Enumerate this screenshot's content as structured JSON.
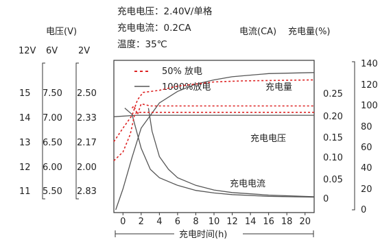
{
  "conditions": [
    "充电电压：2.40V/单格",
    "充电电流：0.2CA",
    "温度：35℃"
  ],
  "left_axis": {
    "title": "电压(V)",
    "scale_names": [
      "12V",
      "6V",
      "2V"
    ],
    "scale_12v": [
      "15",
      "14",
      "13",
      "12",
      "11"
    ],
    "scale_6v": [
      "7.50",
      "7.00",
      "6.50",
      "6.00",
      "5.50"
    ],
    "scale_2v": [
      "2.50",
      "2.33",
      "2.17",
      "2.00",
      "2.83"
    ]
  },
  "right_axis": {
    "title_current": "电流(CA)",
    "title_capacity": "充电量(%)",
    "current_ticks": [
      "0.25",
      "0.20",
      "0.15",
      "0.10",
      "0.05",
      "0"
    ],
    "capacity_ticks": [
      "140",
      "120",
      "100",
      "80",
      "60",
      "40",
      "20",
      "0"
    ]
  },
  "legend": {
    "dashed_label": "50% 放电",
    "solid_label": "1000%放电"
  },
  "curve_labels": {
    "capacity": "充电量",
    "voltage": "充电电压",
    "current": "充电电流"
  },
  "x_axis": {
    "label": "充电时间(h)",
    "ticks": [
      "0",
      "2",
      "4",
      "6",
      "8",
      "10",
      "12",
      "14",
      "16",
      "18",
      "20"
    ]
  },
  "colors": {
    "solid": "#555555",
    "dashed": "#dd2222"
  },
  "chart_data": {
    "type": "line",
    "xlabel": "充电时间(h)",
    "xlim": [
      -1,
      21
    ],
    "series": [
      {
        "name": "1000%放电",
        "quantity": "充电电压",
        "axis": "2V",
        "x": [
          -1,
          1.5,
          2.8,
          21
        ],
        "y": [
          2.34,
          2.35,
          2.35,
          2.35
        ]
      },
      {
        "name": "1000%放电",
        "quantity": "充电电流",
        "axis": "电流(CA)",
        "x": [
          0.2,
          1,
          2,
          3,
          4,
          6,
          8,
          10,
          12,
          16,
          21
        ],
        "y": [
          0.215,
          0.2,
          0.12,
          0.07,
          0.05,
          0.032,
          0.02,
          0.014,
          0.01,
          0.006,
          0.004
        ]
      },
      {
        "name": "1000%放电",
        "quantity": "充电电流",
        "axis": "电流(CA)",
        "x": [
          2.8,
          3.2,
          4,
          5,
          6,
          8,
          10,
          12,
          16,
          21
        ],
        "y": [
          0.215,
          0.16,
          0.1,
          0.07,
          0.05,
          0.032,
          0.021,
          0.015,
          0.009,
          0.005
        ]
      },
      {
        "name": "1000%放电",
        "quantity": "充电量",
        "axis": "充电量(%)",
        "x": [
          -0.8,
          0,
          1,
          2,
          4,
          6,
          8,
          10,
          12,
          16,
          21
        ],
        "y": [
          0,
          20,
          50,
          78,
          102,
          113,
          120,
          124,
          127,
          130,
          131
        ]
      },
      {
        "name": "50% 放电",
        "quantity": "充电电压",
        "axis": "2V",
        "x": [
          -1,
          0,
          0.8,
          1.3,
          1.6,
          2,
          4,
          6,
          10,
          21
        ],
        "y": [
          2.04,
          2.1,
          2.22,
          2.36,
          2.37,
          2.37,
          2.37,
          2.37,
          2.37,
          2.37
        ]
      },
      {
        "name": "50% 放电",
        "quantity": "充电电流",
        "axis": "电流(CA)",
        "x": [
          1.0,
          1.2,
          1.6,
          2,
          3,
          21
        ],
        "y": [
          0.215,
          0.22,
          0.2,
          0.225,
          0.22,
          0.22
        ]
      },
      {
        "name": "50% 放电",
        "quantity": "充电量",
        "axis": "充电量(%)",
        "x": [
          -1,
          0,
          1,
          1.6,
          2.2,
          4,
          6,
          8,
          10,
          13,
          21
        ],
        "y": [
          65,
          78,
          90,
          105,
          112,
          114,
          118,
          120,
          122,
          123,
          124
        ]
      }
    ]
  }
}
